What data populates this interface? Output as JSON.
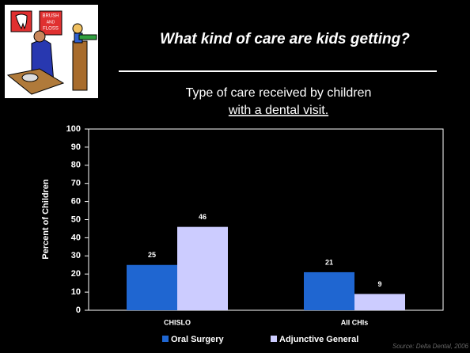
{
  "chart_data": {
    "type": "bar",
    "title": "What kind of care are kids getting?",
    "subtitle": [
      "Type of care received by children",
      "with a dental visit."
    ],
    "ylabel": "Percent of Children",
    "categories": [
      "CHISLO",
      "All CHIs"
    ],
    "series": [
      {
        "name": "Oral Surgery",
        "color": "#1f66d1",
        "values": [
          25,
          21
        ]
      },
      {
        "name": "Adjunctive General",
        "color": "#ccccff",
        "values": [
          46,
          9
        ]
      }
    ],
    "ylim": [
      0,
      100
    ],
    "yticks": [
      0,
      10,
      20,
      30,
      40,
      50,
      60,
      70,
      80,
      90,
      100
    ],
    "legend": "bottom",
    "source": "Source: Delta Dental, 2006"
  },
  "illustration": {
    "sign": [
      "BRUSH",
      "AND",
      "FLOSS"
    ]
  }
}
